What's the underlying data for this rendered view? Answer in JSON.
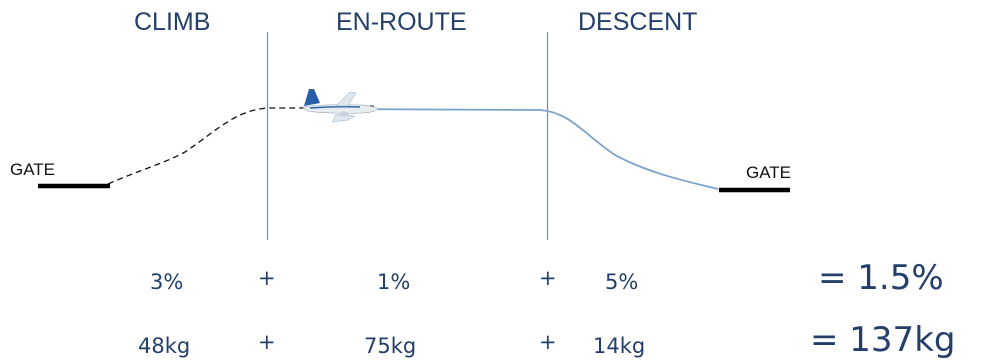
{
  "phases": {
    "climb": "CLIMB",
    "enroute": "EN-ROUTE",
    "descent": "DESCENT"
  },
  "gates": {
    "departure": "GATE",
    "arrival": "GATE"
  },
  "percent_row": {
    "climb": "3%",
    "enroute": "1%",
    "descent": "5%",
    "plus": "+",
    "total": "= 1.5%"
  },
  "weight_row": {
    "climb": "48kg",
    "enroute": "75kg",
    "descent": "14kg",
    "plus": "+",
    "total": "= 137kg"
  },
  "colors": {
    "text": "#24406a",
    "divider": "#6f8fa8",
    "descent_path": "#7ba3c9",
    "dashed_path": "#111111",
    "gate_bar": "#000000",
    "aircraft_body": "#e8edf2",
    "aircraft_accent": "#2b5ea8"
  },
  "icons": {
    "aircraft": "airplane-icon"
  }
}
